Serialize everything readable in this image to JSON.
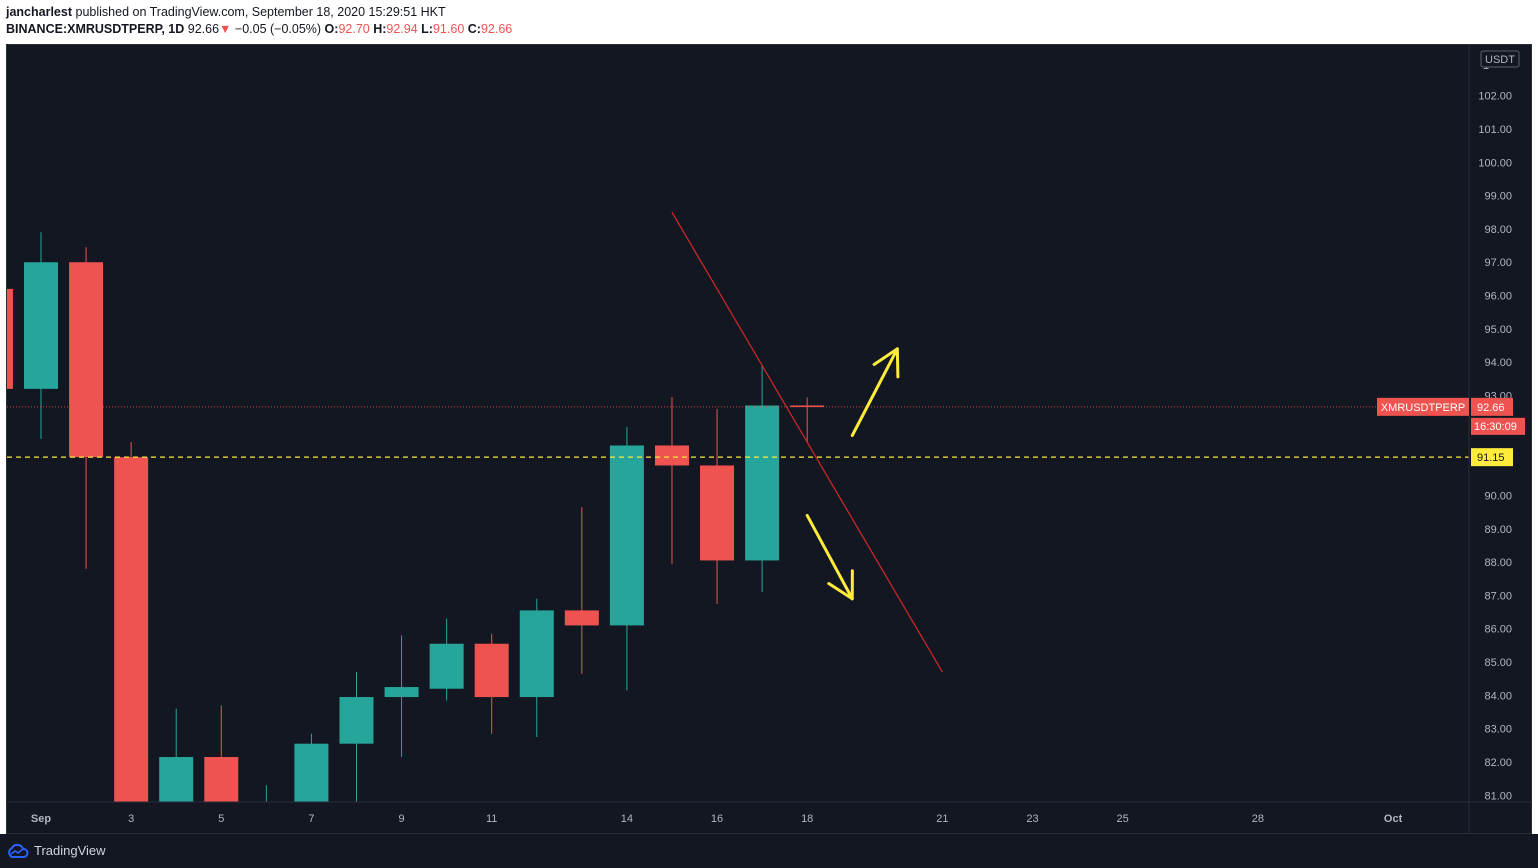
{
  "header": {
    "author": "jancharlest",
    "published_text": "published on TradingView.com, September 18, 2020 15:29:51 HKT",
    "symbol": "BINANCE:XMRUSDTPERP, 1D",
    "last": "92.66",
    "change_arrow": "▼",
    "change": "−0.05 (−0.05%)",
    "open_label": "O:",
    "open": "92.70",
    "high_label": "H:",
    "high": "92.94",
    "low_label": "L:",
    "low": "91.60",
    "close_label": "C:",
    "close": "92.66"
  },
  "footer": {
    "brand": "TradingView",
    "logo_icon": "tradingview-cloud-icon"
  },
  "colors": {
    "background": "#131722",
    "up": "#26a69a",
    "down": "#ef5350",
    "axis_text": "#b2b5be",
    "level_line": "#ffeb3b",
    "trendline": "#c62828",
    "arrow": "#ffeb3b"
  },
  "chart_data": {
    "type": "candlestick",
    "symbol": "XMRUSDTPERP",
    "interval": "1D",
    "currency": "USDT",
    "ylim": [
      80.8,
      103.4
    ],
    "y_ticks": [
      "102.00",
      "101.00",
      "100.00",
      "99.00",
      "98.00",
      "97.00",
      "96.00",
      "95.00",
      "94.00",
      "93.00",
      "90.00",
      "89.00",
      "88.00",
      "87.00",
      "86.00",
      "85.00",
      "84.00",
      "83.00",
      "82.00",
      "81.00"
    ],
    "top_partial_tick": "1",
    "x_ticks": [
      {
        "label": "Sep",
        "date": "2020-09-01",
        "bold": true
      },
      {
        "label": "3",
        "date": "2020-09-03"
      },
      {
        "label": "5",
        "date": "2020-09-05"
      },
      {
        "label": "7",
        "date": "2020-09-07"
      },
      {
        "label": "9",
        "date": "2020-09-09"
      },
      {
        "label": "11",
        "date": "2020-09-11"
      },
      {
        "label": "14",
        "date": "2020-09-14"
      },
      {
        "label": "16",
        "date": "2020-09-16"
      },
      {
        "label": "18",
        "date": "2020-09-18"
      },
      {
        "label": "21",
        "date": "2020-09-21"
      },
      {
        "label": "23",
        "date": "2020-09-23"
      },
      {
        "label": "25",
        "date": "2020-09-25"
      },
      {
        "label": "28",
        "date": "2020-09-28"
      },
      {
        "label": "Oct",
        "date": "2020-10-01",
        "bold": true
      }
    ],
    "candles": [
      {
        "date": "2020-08-31",
        "open": 96.2,
        "high": 96.2,
        "low": 93.2,
        "close": 93.2
      },
      {
        "date": "2020-09-01",
        "open": 93.2,
        "high": 97.9,
        "low": 91.7,
        "close": 97.0
      },
      {
        "date": "2020-09-02",
        "open": 97.0,
        "high": 97.45,
        "low": 87.8,
        "close": 91.15
      },
      {
        "date": "2020-09-03",
        "open": 91.15,
        "high": 91.6,
        "low": 80.8,
        "close": 80.8
      },
      {
        "date": "2020-09-04",
        "open": 80.8,
        "high": 83.6,
        "low": 80.8,
        "close": 82.15
      },
      {
        "date": "2020-09-05",
        "open": 82.15,
        "high": 83.7,
        "low": 80.8,
        "close": 80.8
      },
      {
        "date": "2020-09-06",
        "open": 80.8,
        "high": 81.3,
        "low": 80.8,
        "close": 80.8
      },
      {
        "date": "2020-09-07",
        "open": 80.8,
        "high": 82.85,
        "low": 80.8,
        "close": 82.55
      },
      {
        "date": "2020-09-08",
        "open": 82.55,
        "high": 84.7,
        "low": 80.8,
        "close": 83.95
      },
      {
        "date": "2020-09-09",
        "open": 83.95,
        "high": 85.8,
        "low": 82.15,
        "close": 84.25
      },
      {
        "date": "2020-09-10",
        "open": 84.2,
        "high": 86.3,
        "low": 83.85,
        "close": 85.55
      },
      {
        "date": "2020-09-11",
        "open": 85.55,
        "high": 85.85,
        "low": 82.85,
        "close": 83.95
      },
      {
        "date": "2020-09-12",
        "open": 83.95,
        "high": 86.9,
        "low": 82.75,
        "close": 86.55
      },
      {
        "date": "2020-09-13",
        "open": 86.55,
        "high": 89.65,
        "low": 84.65,
        "close": 86.1
      },
      {
        "date": "2020-09-14",
        "open": 86.1,
        "high": 92.05,
        "low": 84.15,
        "close": 91.5
      },
      {
        "date": "2020-09-15",
        "open": 91.5,
        "high": 92.95,
        "low": 87.95,
        "close": 90.9
      },
      {
        "date": "2020-09-16",
        "open": 90.9,
        "high": 92.6,
        "low": 86.75,
        "close": 88.05
      },
      {
        "date": "2020-09-17",
        "open": 88.05,
        "high": 93.9,
        "low": 87.1,
        "close": 92.7
      },
      {
        "date": "2020-09-18",
        "open": 92.7,
        "high": 92.94,
        "low": 91.6,
        "close": 92.66
      }
    ],
    "price_label": {
      "symbol": "XMRUSDTPERP",
      "value": "92.66",
      "countdown": "16:30:09"
    },
    "horizontal_level": {
      "value": "91.15"
    },
    "trendline": {
      "from": {
        "date": "2020-09-15",
        "price": 98.5
      },
      "to": {
        "date": "2020-09-21",
        "price": 84.7
      }
    },
    "arrows": [
      {
        "direction": "up",
        "from": {
          "date": "2020-09-19",
          "price": 91.8
        },
        "to": {
          "date": "2020-09-20",
          "price": 94.4
        }
      },
      {
        "direction": "down",
        "from": {
          "date": "2020-09-18",
          "price": 89.4
        },
        "to": {
          "date": "2020-09-19",
          "price": 86.9
        }
      }
    ]
  }
}
